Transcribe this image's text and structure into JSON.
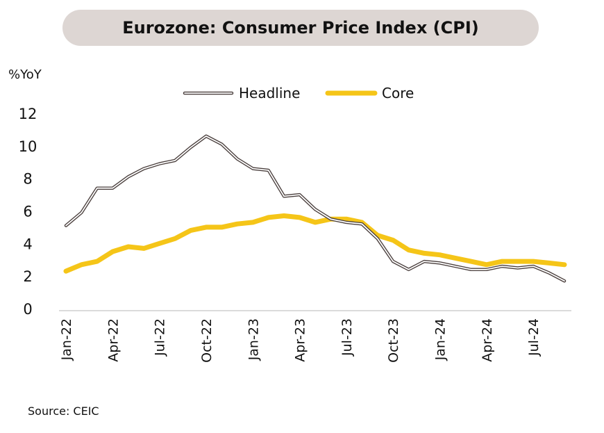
{
  "title": "Eurozone: Consumer Price Index (CPI)",
  "y_unit": "%YoY",
  "source": "Source: CEIC",
  "chart_data": {
    "type": "line",
    "title": "Eurozone: Consumer Price Index (CPI)",
    "ylabel": "%YoY",
    "ylim": [
      0,
      12
    ],
    "yticks": [
      0,
      2,
      4,
      6,
      8,
      10,
      12
    ],
    "x": [
      "Jan-22",
      "Feb-22",
      "Mar-22",
      "Apr-22",
      "May-22",
      "Jun-22",
      "Jul-22",
      "Aug-22",
      "Sep-22",
      "Oct-22",
      "Nov-22",
      "Dec-22",
      "Jan-23",
      "Feb-23",
      "Mar-23",
      "Apr-23",
      "May-23",
      "Jun-23",
      "Jul-23",
      "Aug-23",
      "Sep-23",
      "Oct-23",
      "Nov-23",
      "Dec-23",
      "Jan-24",
      "Feb-24",
      "Mar-24",
      "Apr-24",
      "May-24",
      "Jun-24",
      "Jul-24",
      "Aug-24",
      "Sep-24"
    ],
    "xtick_labels": [
      "Jan-22",
      "Apr-22",
      "Jul-22",
      "Oct-22",
      "Jan-23",
      "Apr-23",
      "Jul-23",
      "Oct-23",
      "Jan-24",
      "Apr-24",
      "Jul-24"
    ],
    "legend_position": "top-center",
    "series": [
      {
        "name": "Headline",
        "color": "#4a3f3d",
        "style": "outlined",
        "values": [
          5.1,
          5.9,
          7.4,
          7.4,
          8.1,
          8.6,
          8.9,
          9.1,
          9.9,
          10.6,
          10.1,
          9.2,
          8.6,
          8.5,
          6.9,
          7.0,
          6.1,
          5.5,
          5.3,
          5.2,
          4.3,
          2.9,
          2.4,
          2.9,
          2.8,
          2.6,
          2.4,
          2.4,
          2.6,
          2.5,
          2.6,
          2.2,
          1.7
        ]
      },
      {
        "name": "Core",
        "color": "#f5c518",
        "style": "thick",
        "values": [
          2.3,
          2.7,
          2.9,
          3.5,
          3.8,
          3.7,
          4.0,
          4.3,
          4.8,
          5.0,
          5.0,
          5.2,
          5.3,
          5.6,
          5.7,
          5.6,
          5.3,
          5.5,
          5.5,
          5.3,
          4.5,
          4.2,
          3.6,
          3.4,
          3.3,
          3.1,
          2.9,
          2.7,
          2.9,
          2.9,
          2.9,
          2.8,
          2.7
        ]
      }
    ]
  }
}
